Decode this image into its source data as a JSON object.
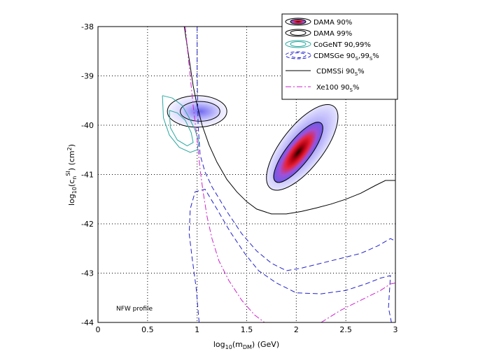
{
  "chart_data": {
    "type": "contour",
    "xlabel": "log10(mDM) (GeV)",
    "ylabel": "log10(cnSI) (cm2)",
    "xlim": [
      0,
      3
    ],
    "ylim": [
      -44,
      -38
    ],
    "xticks": [
      "0",
      "0.5",
      "1",
      "1.5",
      "2",
      "2.5",
      "3"
    ],
    "yticks": [
      "-38",
      "-39",
      "-40",
      "-41",
      "-42",
      "-43",
      "-44"
    ],
    "grid": true,
    "annotation": "NFW profile",
    "legend": [
      {
        "label": "DAMA 90%",
        "key": "dama90"
      },
      {
        "label": "DAMA 99%",
        "key": "dama99"
      },
      {
        "label": "CoGeNT 90,99%",
        "key": "cogent"
      },
      {
        "label": "CDMSGe 90S,99S%",
        "key": "cdmsge"
      },
      {
        "label": "CDMSSi 90S%",
        "key": "cdmssi"
      },
      {
        "label": "Xe100 90S%",
        "key": "xe100"
      }
    ],
    "series": {
      "dama_high_inner": {
        "center": [
          2.02,
          -40.55
        ],
        "rx": 0.12,
        "ry": 0.75,
        "tilt": 0.42
      },
      "dama_high_outer": {
        "center": [
          2.06,
          -40.45
        ],
        "rx": 0.21,
        "ry": 1.05,
        "tilt": 0.42
      },
      "dama_low_inner": {
        "center": [
          1.03,
          -39.72
        ],
        "rx": 0.2,
        "ry": 0.2
      },
      "dama_low_outer": {
        "center": [
          1.0,
          -39.72
        ],
        "rx": 0.3,
        "ry": 0.32
      },
      "cogent_outer": [
        [
          0.65,
          -39.4
        ],
        [
          0.75,
          -39.45
        ],
        [
          0.85,
          -39.6
        ],
        [
          0.92,
          -39.85
        ],
        [
          0.98,
          -40.1
        ],
        [
          1.02,
          -40.35
        ],
        [
          1.0,
          -40.5
        ],
        [
          0.93,
          -40.55
        ],
        [
          0.82,
          -40.45
        ],
        [
          0.72,
          -40.2
        ],
        [
          0.66,
          -39.85
        ],
        [
          0.65,
          -39.4
        ]
      ],
      "cogent_inner": [
        [
          0.72,
          -39.7
        ],
        [
          0.8,
          -39.75
        ],
        [
          0.88,
          -39.9
        ],
        [
          0.94,
          -40.15
        ],
        [
          0.96,
          -40.35
        ],
        [
          0.9,
          -40.42
        ],
        [
          0.8,
          -40.3
        ],
        [
          0.73,
          -40.05
        ],
        [
          0.72,
          -39.7
        ]
      ],
      "cdmssi": [
        [
          0.87,
          -38
        ],
        [
          0.9,
          -38.4
        ],
        [
          0.93,
          -38.8
        ],
        [
          0.96,
          -39.2
        ],
        [
          1.0,
          -39.6
        ],
        [
          1.05,
          -40.0
        ],
        [
          1.12,
          -40.4
        ],
        [
          1.2,
          -40.75
        ],
        [
          1.3,
          -41.1
        ],
        [
          1.4,
          -41.35
        ],
        [
          1.5,
          -41.55
        ],
        [
          1.6,
          -41.7
        ],
        [
          1.75,
          -41.8
        ],
        [
          1.9,
          -41.8
        ],
        [
          2.05,
          -41.75
        ],
        [
          2.2,
          -41.68
        ],
        [
          2.35,
          -41.6
        ],
        [
          2.5,
          -41.5
        ],
        [
          2.65,
          -41.38
        ],
        [
          2.8,
          -41.22
        ],
        [
          2.9,
          -41.12
        ],
        [
          3.0,
          -41.12
        ]
      ],
      "cdmsge_90": [
        [
          1.0,
          -38
        ],
        [
          1.0,
          -39
        ],
        [
          1.01,
          -40
        ],
        [
          1.03,
          -40.6
        ],
        [
          1.08,
          -40.95
        ],
        [
          1.15,
          -41.25
        ],
        [
          1.3,
          -41.75
        ],
        [
          1.45,
          -42.2
        ],
        [
          1.6,
          -42.55
        ],
        [
          1.75,
          -42.8
        ],
        [
          1.9,
          -42.95
        ],
        [
          2.05,
          -42.9
        ],
        [
          2.25,
          -42.8
        ],
        [
          2.45,
          -42.7
        ],
        [
          2.65,
          -42.6
        ],
        [
          2.82,
          -42.45
        ],
        [
          2.95,
          -42.3
        ],
        [
          3.0,
          -42.35
        ]
      ],
      "cdmsge_99": [
        [
          1.02,
          -44
        ],
        [
          0.99,
          -43.3
        ],
        [
          0.95,
          -42.7
        ],
        [
          0.92,
          -42.2
        ],
        [
          0.93,
          -41.7
        ],
        [
          0.98,
          -41.35
        ],
        [
          1.08,
          -41.3
        ],
        [
          1.2,
          -41.7
        ],
        [
          1.33,
          -42.15
        ],
        [
          1.48,
          -42.6
        ],
        [
          1.62,
          -42.95
        ],
        [
          1.8,
          -43.2
        ],
        [
          2.0,
          -43.4
        ],
        [
          2.25,
          -43.42
        ],
        [
          2.5,
          -43.35
        ],
        [
          2.7,
          -43.22
        ],
        [
          2.85,
          -43.1
        ],
        [
          2.95,
          -43.05
        ],
        [
          2.93,
          -43.7
        ],
        [
          2.96,
          -44.0
        ]
      ],
      "xe100": [
        [
          0.88,
          -38
        ],
        [
          0.92,
          -38.8
        ],
        [
          0.96,
          -39.6
        ],
        [
          1.0,
          -40.3
        ],
        [
          1.03,
          -40.9
        ],
        [
          1.06,
          -41.35
        ],
        [
          1.1,
          -41.85
        ],
        [
          1.15,
          -42.3
        ],
        [
          1.22,
          -42.75
        ],
        [
          1.32,
          -43.15
        ],
        [
          1.45,
          -43.55
        ],
        [
          1.58,
          -43.85
        ],
        [
          1.68,
          -44.0
        ]
      ],
      "xe100_tail": [
        [
          2.25,
          -44.0
        ],
        [
          2.45,
          -43.75
        ],
        [
          2.65,
          -43.55
        ],
        [
          2.85,
          -43.35
        ],
        [
          2.95,
          -43.22
        ],
        [
          3.0,
          -43.2
        ]
      ]
    }
  }
}
